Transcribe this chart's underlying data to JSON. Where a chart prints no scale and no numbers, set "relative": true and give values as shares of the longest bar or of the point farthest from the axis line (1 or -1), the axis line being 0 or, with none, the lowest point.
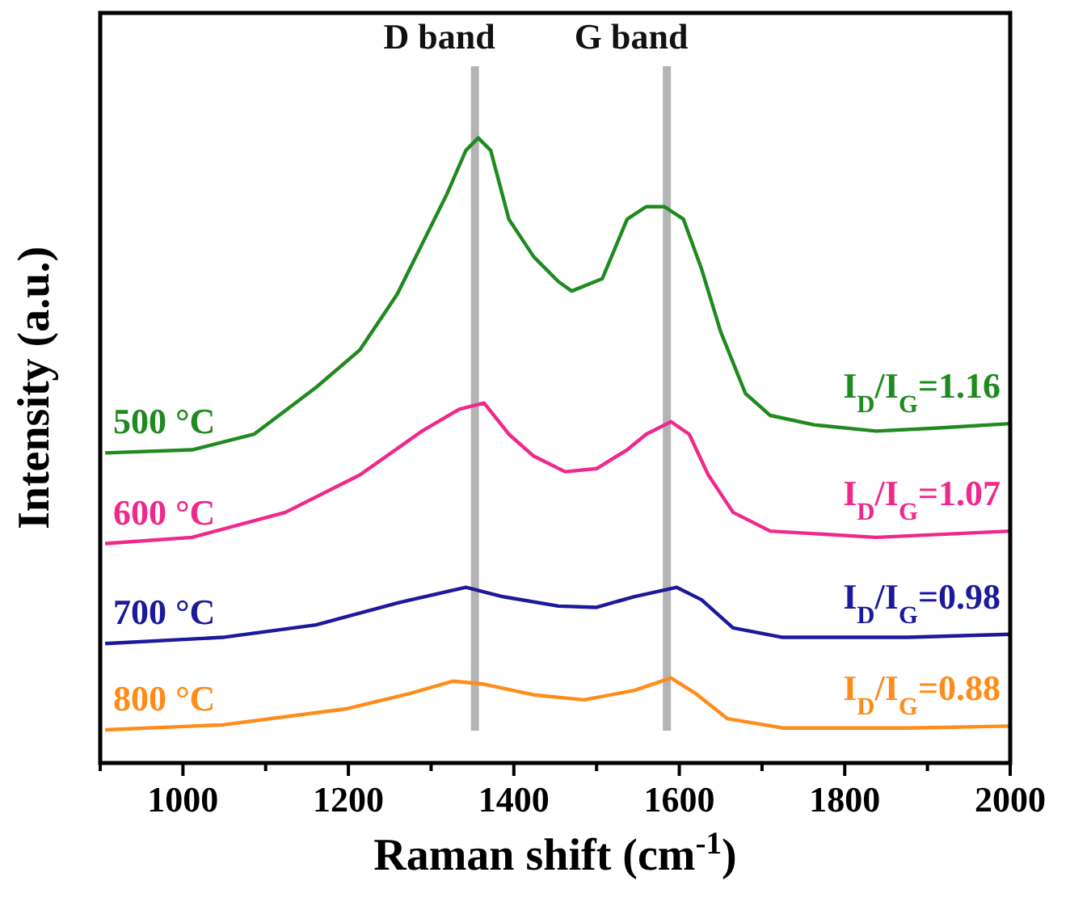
{
  "chart_data": {
    "type": "line",
    "relative": true,
    "xlabel": "Raman shift (cm$^{-1}$)",
    "ylabel": "Intensity (a.u.)",
    "xlim": [
      900,
      2000
    ],
    "xticks": [
      {
        "value": 900,
        "label": null
      },
      1000,
      {
        "value": 1100,
        "label": null
      },
      1200,
      {
        "value": 1300,
        "label": null
      },
      1400,
      {
        "value": 1500,
        "label": null
      },
      1600,
      {
        "value": 1700,
        "label": null
      },
      1800,
      {
        "value": 1900,
        "label": null
      },
      2000
    ],
    "tick_labels": "x",
    "grid": false,
    "marker": "none",
    "line_style": "solid",
    "x": [
      906,
      1011,
      1086,
      1161,
      1214,
      1259,
      1289,
      1319,
      1342,
      1357,
      1372,
      1394,
      1424,
      1454,
      1470,
      1507,
      1537,
      1560,
      1582,
      1605,
      1627,
      1650,
      1680,
      1710,
      1763,
      1838,
      1913,
      2000
    ],
    "series": [
      {
        "name": "500 °C",
        "color": "#1f8a1f",
        "values": [
          0.496,
          0.501,
          0.526,
          0.601,
          0.661,
          0.75,
          0.83,
          0.91,
          0.98,
          1.0,
          0.98,
          0.87,
          0.81,
          0.77,
          0.755,
          0.775,
          0.87,
          0.89,
          0.89,
          0.87,
          0.79,
          0.69,
          0.591,
          0.556,
          0.541,
          0.531,
          0.536,
          0.543
        ]
      },
      {
        "name": "600 °C",
        "color": "#f0288c",
        "x": [
          906,
          1011,
          1124,
          1214,
          1289,
          1334,
          1364,
          1394,
          1424,
          1462,
          1500,
          1537,
          1560,
          1590,
          1612,
          1635,
          1665,
          1710,
          1838,
          2000
        ],
        "values": [
          0.351,
          0.361,
          0.401,
          0.461,
          0.531,
          0.566,
          0.576,
          0.526,
          0.491,
          0.466,
          0.471,
          0.501,
          0.526,
          0.546,
          0.526,
          0.461,
          0.401,
          0.371,
          0.361,
          0.371
        ]
      },
      {
        "name": "700 °C",
        "color": "#1a1a9a",
        "x": [
          906,
          1048,
          1161,
          1259,
          1342,
          1387,
          1454,
          1500,
          1545,
          1597,
          1627,
          1665,
          1725,
          1876,
          2000
        ],
        "values": [
          0.191,
          0.201,
          0.221,
          0.256,
          0.281,
          0.266,
          0.251,
          0.249,
          0.266,
          0.281,
          0.261,
          0.216,
          0.201,
          0.201,
          0.206
        ]
      },
      {
        "name": "800 °C",
        "color": "#ff8c1a",
        "x": [
          906,
          1048,
          1199,
          1274,
          1327,
          1364,
          1424,
          1485,
          1545,
          1590,
          1620,
          1658,
          1725,
          1876,
          2000
        ],
        "values": [
          0.053,
          0.061,
          0.087,
          0.111,
          0.131,
          0.126,
          0.109,
          0.101,
          0.116,
          0.136,
          0.111,
          0.071,
          0.056,
          0.056,
          0.059
        ]
      }
    ],
    "ref_lines": [
      {
        "axis": "x",
        "value": 1353,
        "label": "D band",
        "color": "#b4b4b4"
      },
      {
        "axis": "x",
        "value": 1585,
        "label": "G band",
        "color": "#b4b4b4"
      }
    ],
    "annotations": [
      "I$_{D}$/I$_{G}$=1.16",
      "I$_{D}$/I$_{G}$=1.07",
      "I$_{D}$/I$_{G}$=0.98",
      "I$_{D}$/I$_{G}$=0.88"
    ]
  }
}
